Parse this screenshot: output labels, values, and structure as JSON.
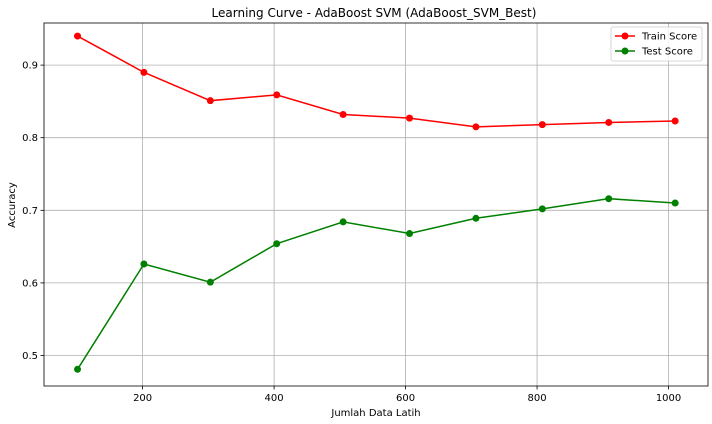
{
  "chart_data": {
    "type": "line",
    "title": "Learning Curve - AdaBoost SVM (AdaBoost_SVM_Best)",
    "xlabel": "Jumlah Data Latih",
    "ylabel": "Accuracy",
    "xlim": [
      50,
      1060
    ],
    "ylim": [
      0.458,
      0.958
    ],
    "xticks": [
      200,
      400,
      600,
      800,
      1000
    ],
    "yticks": [
      0.5,
      0.6,
      0.7,
      0.8,
      0.9
    ],
    "xtick_labels": [
      "200",
      "400",
      "600",
      "800",
      "1000"
    ],
    "ytick_labels": [
      "0.5",
      "0.6",
      "0.7",
      "0.8",
      "0.9"
    ],
    "grid": true,
    "legend_position": "top-right",
    "x": [
      101,
      202,
      303,
      404,
      505,
      606,
      707,
      808,
      909,
      1010
    ],
    "series": [
      {
        "name": "Train Score",
        "color": "#ff0000",
        "marker": "circle",
        "values": [
          0.94,
          0.89,
          0.851,
          0.859,
          0.832,
          0.827,
          0.815,
          0.818,
          0.821,
          0.823
        ]
      },
      {
        "name": "Test Score",
        "color": "#008000",
        "marker": "circle",
        "values": [
          0.481,
          0.626,
          0.601,
          0.654,
          0.684,
          0.668,
          0.689,
          0.702,
          0.716,
          0.71
        ]
      }
    ]
  }
}
